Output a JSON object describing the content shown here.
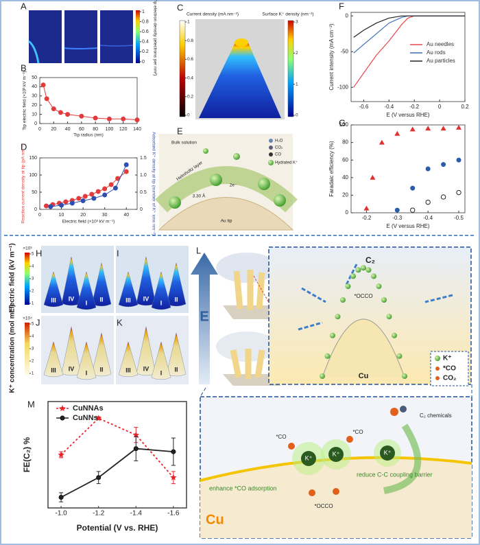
{
  "chart_data": [
    {
      "type": "line",
      "xlabel": "Tip radius (nm)",
      "ylabel": "Tip electric field (×10³ kV m⁻¹)",
      "x": [
        5,
        10,
        20,
        30,
        40,
        60,
        80,
        100,
        120,
        140
      ],
      "series": [
        {
          "color": "#e23b3b",
          "marker": "circle",
          "values": [
            42,
            27,
            16,
            12,
            10,
            8,
            6,
            5,
            5,
            4
          ]
        }
      ],
      "xlim": [
        0,
        140
      ],
      "xticks": [
        0,
        20,
        40,
        60,
        80,
        100,
        120,
        140
      ],
      "ylim": [
        0,
        50
      ],
      "yticks": [
        0,
        10,
        20,
        30,
        40,
        50
      ]
    },
    {
      "type": "line",
      "xlabel": "Electric field (×10³ kV m⁻¹)",
      "ylabel": "Reaction current density at tip (pA nm⁻²)",
      "y2label": "Adsorbed K⁺ density at tip (number of K⁺ ions nm⁻²)",
      "series": [
        {
          "color": "#e23b3b",
          "marker": "circle",
          "x": [
            3,
            6,
            9,
            12,
            15,
            18,
            21,
            24,
            27,
            30,
            33,
            36,
            40
          ],
          "values": [
            10,
            14,
            18,
            22,
            26,
            32,
            38,
            44,
            52,
            60,
            72,
            90,
            110
          ]
        },
        {
          "color": "#2f4fb0",
          "marker": "circle",
          "axis": "y2",
          "x": [
            5,
            10,
            15,
            20,
            25,
            30,
            35,
            40
          ],
          "values": [
            0.08,
            0.12,
            0.18,
            0.25,
            0.32,
            0.42,
            0.62,
            1.3
          ]
        }
      ],
      "xlim": [
        0,
        45
      ],
      "xticks": [
        0,
        10,
        20,
        30,
        40
      ],
      "ylim": [
        0,
        150
      ],
      "yticks": [
        0,
        50,
        100,
        150
      ],
      "y2lim": [
        0,
        1.5
      ],
      "y2ticks": [
        0,
        0.5,
        {
          "value": 1,
          "label": "1.0"
        },
        1.5
      ]
    },
    {
      "type": "line",
      "xlabel": "E (V versus RHE)",
      "ylabel": "Current intensity (mA cm⁻²)",
      "x": [
        -0.68,
        -0.6,
        -0.5,
        -0.4,
        -0.3,
        -0.25,
        -0.2,
        -0.1,
        0,
        0.1,
        0.2
      ],
      "series": [
        {
          "name": "Au needles",
          "color": "#e8474a",
          "values": [
            -100,
            -80,
            -55,
            -35,
            -12,
            -3,
            0,
            0,
            0,
            0,
            0
          ]
        },
        {
          "name": "Au rods",
          "color": "#3a6fb5",
          "values": [
            -52,
            -40,
            -25,
            -10,
            -2,
            0,
            0,
            0,
            0,
            0,
            0
          ]
        },
        {
          "name": "Au particles",
          "color": "#222222",
          "values": [
            -30,
            -20,
            -10,
            -3,
            0,
            0,
            0,
            0,
            0,
            0,
            0
          ]
        }
      ],
      "legend": "center right",
      "xlim": [
        -0.7,
        0.2
      ],
      "xticks": [
        -0.6,
        -0.4,
        -0.2,
        0,
        0.2
      ],
      "ylim": [
        -120,
        5
      ],
      "yticks": [
        0,
        -50,
        -100
      ]
    },
    {
      "type": "scatter",
      "xlabel": "E (V versus RHE)",
      "ylabel": "Faradaic efficiency (%)",
      "series": [
        {
          "color": "#e03030",
          "marker": "triangle",
          "x": [
            -0.2,
            -0.22,
            -0.25,
            -0.3,
            -0.35,
            -0.4,
            -0.45,
            -0.5
          ],
          "values": [
            5,
            40,
            80,
            90,
            95,
            96,
            96,
            97
          ]
        },
        {
          "color": "#2a5caa",
          "marker": "circle",
          "x": [
            -0.3,
            -0.35,
            -0.4,
            -0.45,
            -0.5
          ],
          "values": [
            3,
            28,
            50,
            55,
            60
          ]
        },
        {
          "color": "#222222",
          "marker": "open-circle",
          "x": [
            -0.35,
            -0.4,
            -0.45,
            -0.5
          ],
          "values": [
            3,
            12,
            18,
            23
          ]
        }
      ],
      "xlim": [
        -0.15,
        -0.52
      ],
      "xticks": [
        -0.2,
        -0.3,
        -0.4,
        -0.5
      ],
      "ylim": [
        0,
        100
      ],
      "yticks": [
        0,
        20,
        40,
        60,
        80,
        100
      ]
    },
    {
      "type": "line",
      "xlabel": "Potential (V vs. RHE)",
      "ylabel": "FE(C₂) %",
      "x": [
        -1,
        -1.2,
        -1.4,
        -1.6
      ],
      "series": [
        {
          "name": "CuNNAs",
          "color": "#e8242a",
          "marker": "star",
          "dash": "dotted",
          "values": [
            35,
            59,
            48,
            20
          ],
          "errors": [
            2,
            1,
            5,
            4
          ]
        },
        {
          "name": "CuNNs",
          "color": "#222222",
          "marker": "circle",
          "values": [
            7,
            20,
            39,
            37
          ],
          "errors": [
            3,
            4,
            8,
            9
          ]
        }
      ],
      "legend": "upper left",
      "xlim": [
        -0.93,
        -1.67
      ],
      "xticks": [
        {
          "value": -1,
          "label": "-1.0"
        },
        -1.2,
        -1.4,
        -1.6
      ],
      "ylim": [
        0,
        70
      ]
    }
  ],
  "panel_labels": [
    "A",
    "B",
    "C",
    "D",
    "E",
    "F",
    "G",
    "H",
    "I",
    "J",
    "K",
    "L",
    "M"
  ],
  "panel_a": {
    "colorbar_label": "Tip electron density (electrons per nm²)",
    "colorbar_ticks": [
      0,
      0.2,
      0.4,
      0.6,
      0.8,
      1
    ]
  },
  "panel_c": {
    "left_label": "Current density (mA nm⁻²)",
    "left_ticks": [
      0,
      0.2,
      0.4,
      0.6,
      0.8,
      1
    ],
    "right_label": "Surface K⁺ density (nm⁻²)",
    "right_ticks": [
      0,
      1,
      2,
      3
    ]
  },
  "panel_e": {
    "labels": [
      "Bulk solution",
      "Helmholtz layer",
      "3.30 Å",
      "2e⁻",
      "Au tip"
    ],
    "legend": [
      "H₂O",
      "CO₂",
      "CO",
      "Hydrated K⁺"
    ]
  },
  "panel_hi": {
    "colorbar_label": "Electric field (kV m⁻¹)",
    "scale": "×10³",
    "ticks": [
      1,
      2,
      3,
      4,
      5
    ]
  },
  "panel_jk": {
    "colorbar_label": "K⁺ concentration (mol m⁻³)",
    "scale": "×10⁴",
    "ticks": [
      1,
      2,
      3,
      4,
      5
    ]
  },
  "cone_labels": [
    "I",
    "II",
    "III",
    "IV"
  ],
  "panel_l": {
    "axis_label": "E",
    "labels": [
      "C₂",
      "*OCCO",
      "Cu"
    ],
    "legend": [
      "K⁺",
      "*CO",
      "CO₂"
    ]
  },
  "zoom": {
    "labels": [
      "C₂ chemicals",
      "*CO",
      "*CO",
      "K⁺",
      "K⁺",
      "K⁺",
      "enhance *CO adsorption",
      "reduce C-C coupling barrier",
      "*OCCO",
      "Cu"
    ]
  }
}
